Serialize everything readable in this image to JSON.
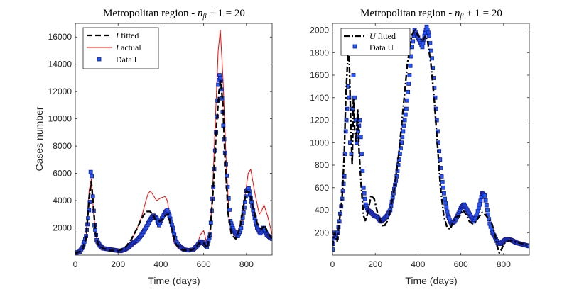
{
  "colors": {
    "fitted": "#000000",
    "actual": "#ff0000",
    "data_fill": "#1f5cff",
    "data_edge": "#1a1a8c"
  },
  "chart_data": [
    {
      "type": "line",
      "title": "Metropolitan region - n_β + 1 = 20",
      "xlabel": "Time (days)",
      "ylabel": "Cases number",
      "xlim": [
        0,
        920
      ],
      "ylim": [
        0,
        17000
      ],
      "xticks": [
        0,
        200,
        400,
        600,
        800
      ],
      "yticks": [
        2000,
        4000,
        6000,
        8000,
        10000,
        12000,
        14000,
        16000
      ],
      "legend_position": "top-left",
      "series": [
        {
          "name": "I fitted",
          "style": "dashed",
          "x": [
            0,
            30,
            50,
            65,
            75,
            85,
            95,
            110,
            130,
            160,
            200,
            230,
            260,
            290,
            310,
            330,
            350,
            365,
            380,
            400,
            420,
            435,
            450,
            470,
            500,
            530,
            560,
            580,
            600,
            615,
            630,
            645,
            660,
            672,
            680,
            690,
            700,
            715,
            730,
            750,
            770,
            785,
            800,
            815,
            830,
            850,
            870,
            885,
            900,
            920
          ],
          "y": [
            150,
            300,
            1200,
            4300,
            5400,
            3500,
            1500,
            700,
            500,
            350,
            300,
            500,
            1100,
            2000,
            2700,
            3200,
            3200,
            2900,
            2500,
            2500,
            2900,
            3000,
            2000,
            800,
            400,
            300,
            500,
            900,
            900,
            500,
            1600,
            5000,
            9500,
            12000,
            12800,
            11000,
            7000,
            3000,
            1500,
            1200,
            2000,
            3500,
            4700,
            4600,
            3500,
            2300,
            1900,
            2200,
            1600,
            1200
          ]
        },
        {
          "name": "I actual",
          "style": "solid",
          "x": [
            0,
            30,
            50,
            65,
            75,
            85,
            95,
            110,
            130,
            160,
            200,
            230,
            260,
            290,
            310,
            330,
            340,
            350,
            360,
            380,
            400,
            420,
            430,
            445,
            460,
            480,
            510,
            540,
            570,
            585,
            600,
            612,
            625,
            640,
            655,
            668,
            678,
            690,
            705,
            720,
            740,
            760,
            780,
            795,
            808,
            820,
            840,
            860,
            870,
            882,
            900,
            920
          ],
          "y": [
            150,
            300,
            1300,
            4800,
            5600,
            3200,
            1500,
            700,
            500,
            350,
            300,
            500,
            1000,
            2000,
            2800,
            4000,
            4500,
            4700,
            4500,
            4000,
            4200,
            4300,
            4000,
            2500,
            1000,
            500,
            400,
            350,
            800,
            1500,
            1800,
            1000,
            800,
            4000,
            10000,
            15000,
            16500,
            13000,
            7000,
            2500,
            1500,
            1500,
            2500,
            4500,
            6000,
            6300,
            4500,
            3000,
            3200,
            3700,
            2800,
            1500
          ]
        },
        {
          "name": "Data I",
          "style": "markers",
          "x": [
            0,
            20,
            35,
            50,
            60,
            68,
            72,
            77,
            82,
            90,
            100,
            115,
            130,
            150,
            170,
            190,
            210,
            230,
            250,
            270,
            290,
            310,
            330,
            350,
            365,
            380,
            392,
            405,
            418,
            430,
            440,
            455,
            470,
            490,
            510,
            530,
            550,
            570,
            585,
            600,
            615,
            630,
            645,
            658,
            668,
            674,
            680,
            686,
            692,
            700,
            712,
            725,
            740,
            760,
            775,
            790,
            800,
            810,
            820,
            835,
            850,
            865,
            880,
            895,
            910,
            920
          ],
          "y": [
            150,
            250,
            600,
            1400,
            2700,
            3900,
            6100,
            5800,
            4300,
            2200,
            1100,
            700,
            500,
            450,
            400,
            350,
            300,
            400,
            600,
            900,
            1100,
            1500,
            2000,
            2600,
            2900,
            2700,
            2200,
            2700,
            3100,
            3300,
            2900,
            2000,
            1000,
            600,
            400,
            350,
            400,
            700,
            1000,
            900,
            600,
            1500,
            5000,
            9000,
            12500,
            13200,
            12800,
            11500,
            9500,
            7500,
            5000,
            2500,
            1800,
            1400,
            2000,
            3500,
            4700,
            4900,
            4200,
            3000,
            2000,
            1600,
            2000,
            1500,
            1300,
            1200
          ]
        }
      ]
    },
    {
      "type": "line",
      "title": "Metropolitan region - n_β + 1 = 20",
      "xlabel": "Time (days)",
      "ylabel": "",
      "xlim": [
        0,
        920
      ],
      "ylim": [
        0,
        2060
      ],
      "xticks": [
        0,
        200,
        400,
        600,
        800
      ],
      "yticks": [
        200,
        400,
        600,
        800,
        1000,
        1200,
        1400,
        1600,
        1800,
        2000
      ],
      "legend_position": "top-left",
      "series": [
        {
          "name": "U fitted",
          "style": "dashdot",
          "x": [
            0,
            10,
            22,
            35,
            45,
            55,
            62,
            70,
            75,
            80,
            85,
            92,
            98,
            104,
            110,
            118,
            125,
            135,
            145,
            155,
            165,
            180,
            195,
            210,
            225,
            240,
            255,
            270,
            290,
            310,
            330,
            350,
            370,
            385,
            400,
            420,
            435,
            445,
            460,
            475,
            490,
            505,
            520,
            535,
            550,
            565,
            580,
            595,
            610,
            625,
            640,
            655,
            670,
            685,
            700,
            715,
            730,
            745,
            760,
            770,
            780,
            790,
            800,
            815,
            830,
            850,
            870,
            890,
            905,
            920
          ],
          "y": [
            80,
            200,
            120,
            350,
            500,
            900,
            1400,
            1700,
            2000,
            1600,
            1200,
            800,
            1400,
            1100,
            1000,
            1300,
            900,
            600,
            350,
            300,
            380,
            530,
            500,
            380,
            300,
            250,
            300,
            400,
            600,
            900,
            1300,
            1700,
            1950,
            2010,
            1950,
            1900,
            1950,
            1900,
            1700,
            1400,
            1000,
            600,
            350,
            250,
            230,
            300,
            340,
            350,
            400,
            360,
            300,
            280,
            300,
            340,
            380,
            360,
            320,
            280,
            180,
            80,
            20,
            50,
            100,
            120,
            130,
            120,
            110,
            100,
            90,
            80
          ]
        },
        {
          "name": "Data U",
          "style": "markers",
          "x": [
            0,
            10,
            20,
            32,
            45,
            55,
            62,
            68,
            73,
            78,
            83,
            88,
            93,
            98,
            103,
            108,
            113,
            120,
            128,
            136,
            145,
            155,
            165,
            180,
            195,
            210,
            225,
            240,
            255,
            270,
            285,
            300,
            315,
            330,
            345,
            360,
            372,
            384,
            396,
            408,
            420,
            430,
            440,
            452,
            465,
            480,
            495,
            510,
            525,
            540,
            555,
            570,
            585,
            600,
            615,
            630,
            645,
            660,
            675,
            688,
            700,
            712,
            724,
            735,
            748,
            760,
            772,
            784,
            796,
            810,
            825,
            840,
            860,
            880,
            900,
            920
          ],
          "y": [
            50,
            200,
            150,
            300,
            500,
            700,
            1100,
            1300,
            1500,
            1400,
            1000,
            900,
            1300,
            1600,
            1400,
            1200,
            1000,
            1100,
            1200,
            900,
            600,
            450,
            400,
            380,
            350,
            340,
            300,
            320,
            350,
            400,
            550,
            700,
            900,
            1100,
            1300,
            1600,
            1850,
            2000,
            1950,
            1900,
            1850,
            1950,
            2030,
            1950,
            1750,
            1400,
            1000,
            700,
            500,
            350,
            280,
            300,
            350,
            420,
            450,
            400,
            350,
            300,
            360,
            450,
            550,
            530,
            400,
            280,
            200,
            160,
            110,
            100,
            120,
            140,
            140,
            130,
            110,
            100,
            90,
            80
          ]
        }
      ]
    }
  ]
}
